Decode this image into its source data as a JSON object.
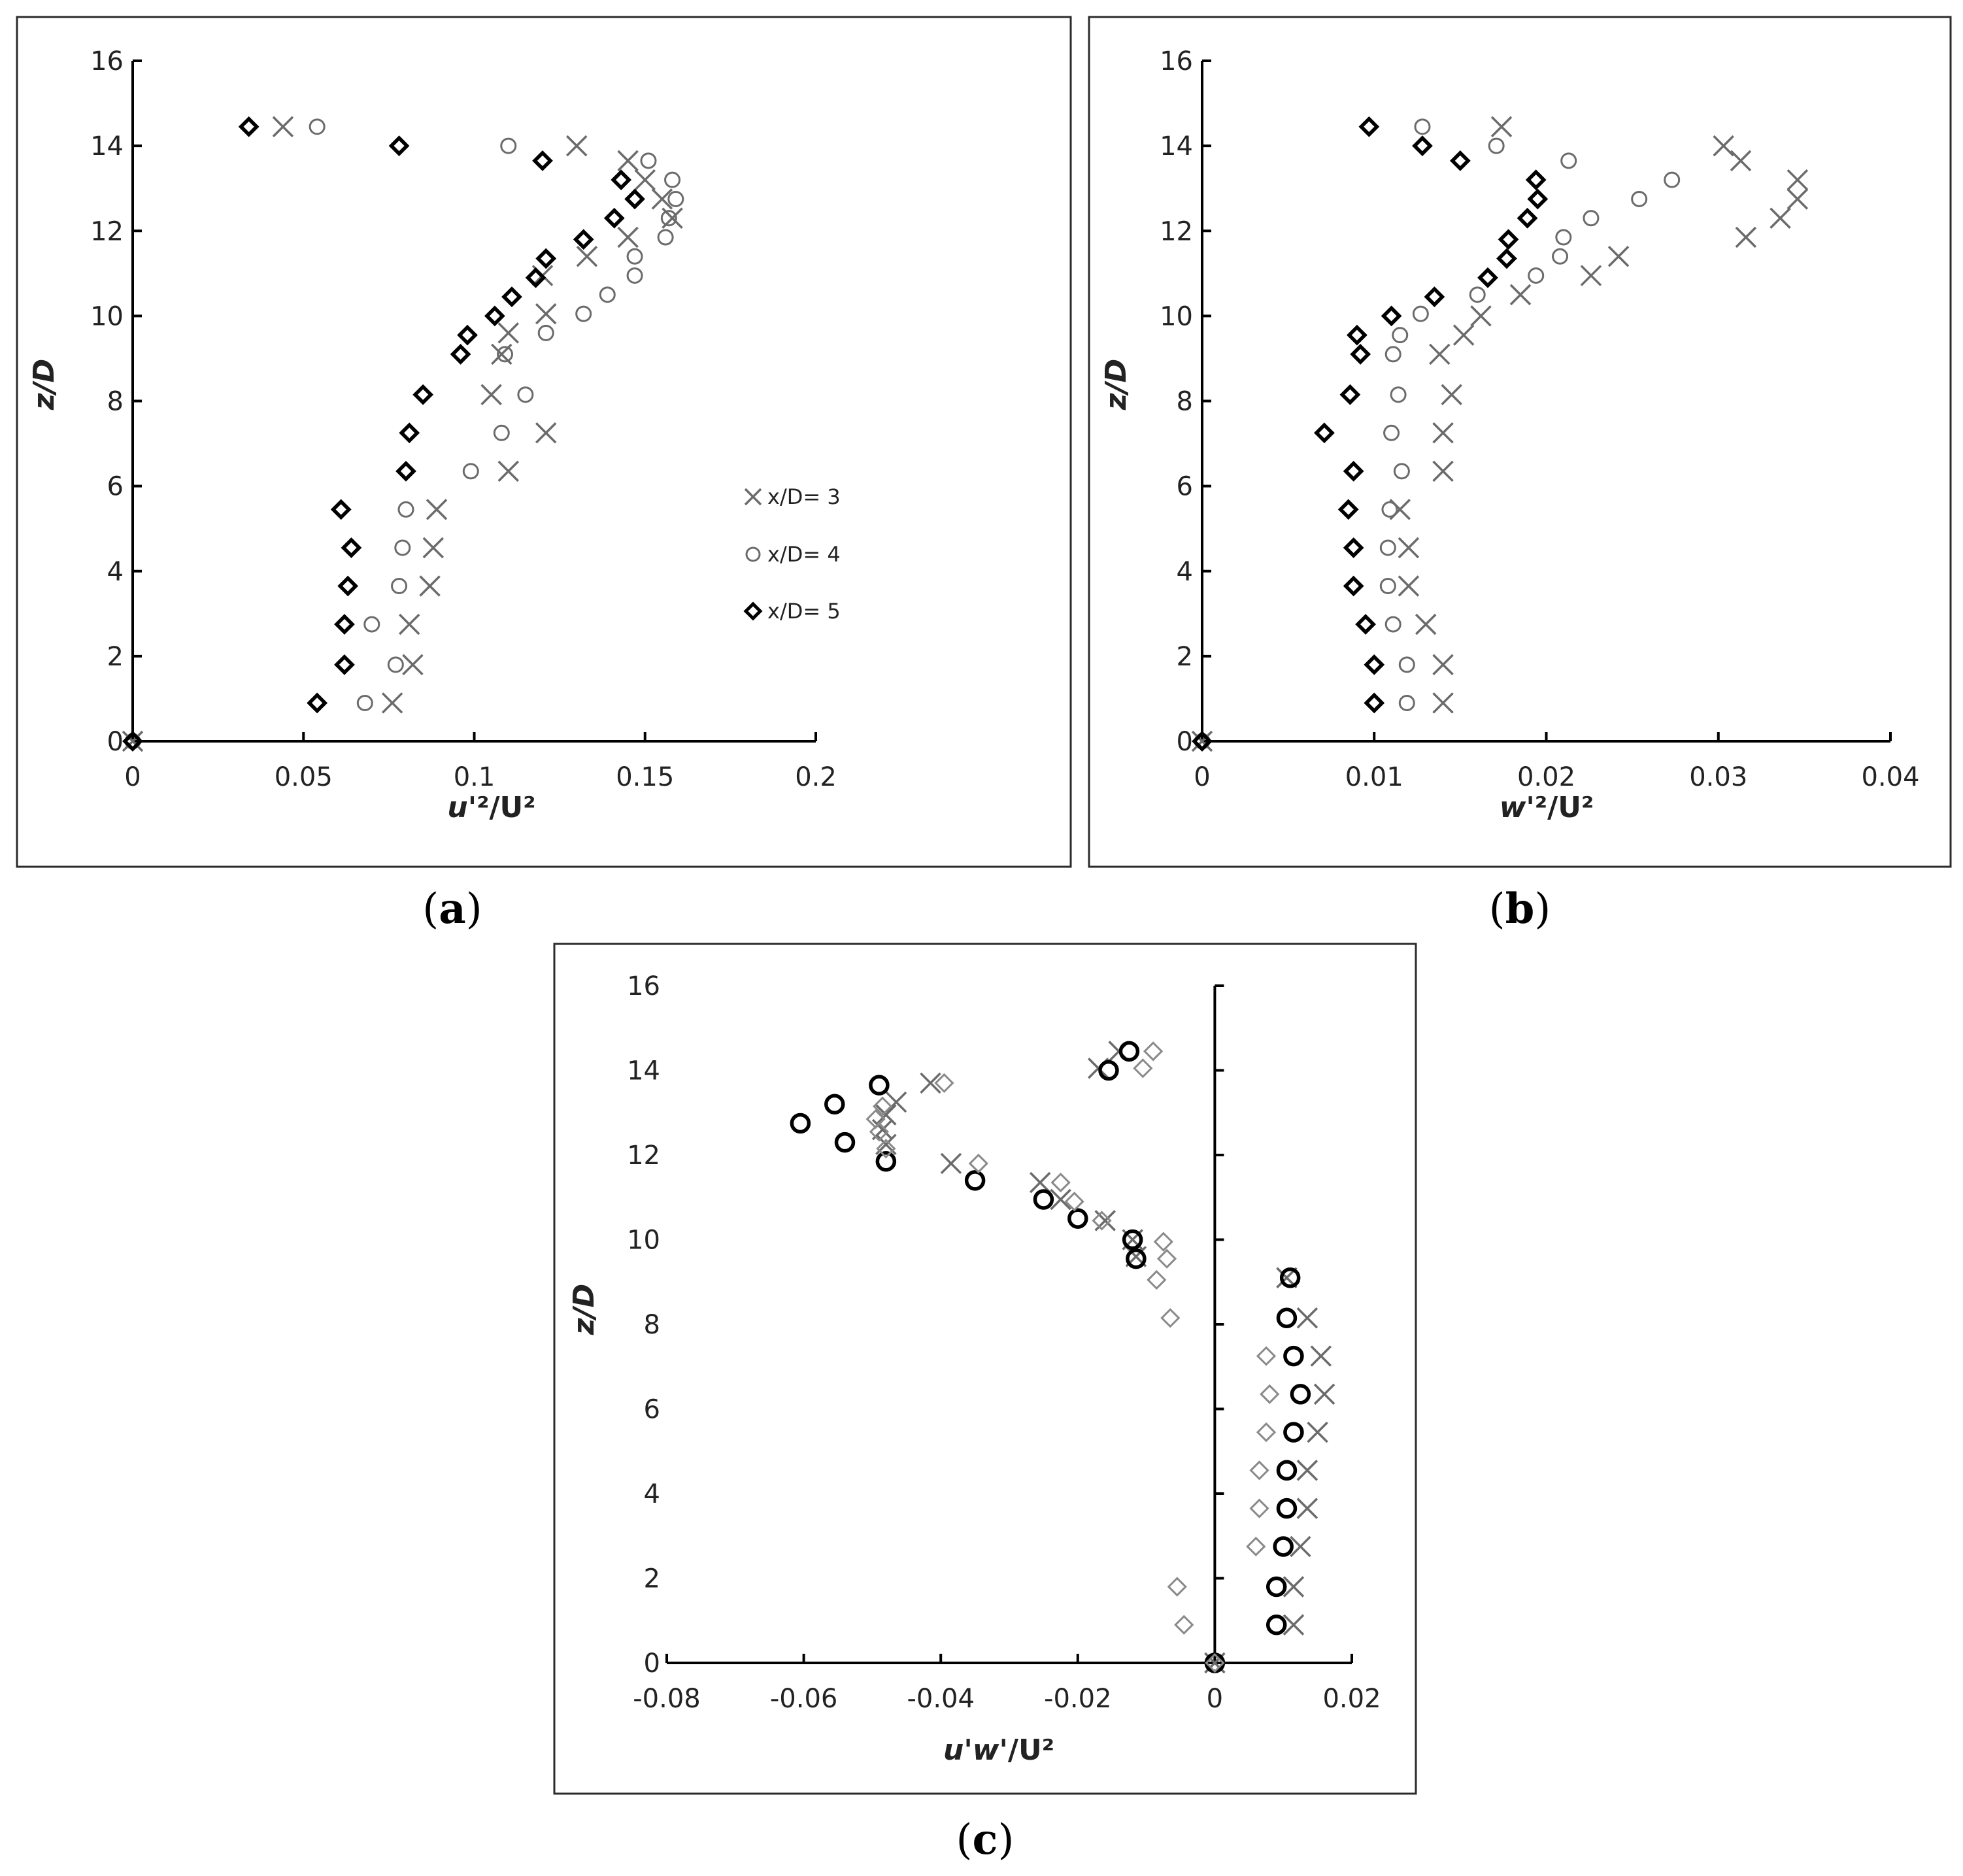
{
  "colors": {
    "dark": "#000000",
    "gray": "#6b6b6b",
    "light_gray": "#8a8a8a"
  },
  "panel_labels": [
    {
      "open": "(",
      "letter": "a",
      "close": ")"
    },
    {
      "open": "(",
      "letter": "b",
      "close": ")"
    },
    {
      "open": "(",
      "letter": "c",
      "close": ")"
    }
  ],
  "chart_data": [
    {
      "id": "a",
      "type": "scatter",
      "xlabel_main": "u'",
      "xlabel_rest": "²/U²",
      "ylabel": "z/D",
      "xlim": [
        0,
        0.2
      ],
      "ylim": [
        0,
        16
      ],
      "xticks": [
        0,
        0.05,
        0.1,
        0.15,
        0.2
      ],
      "xtick_labels": [
        "0",
        "0.05",
        "0.1",
        "0.15",
        "0.2"
      ],
      "yticks": [
        0,
        2,
        4,
        6,
        8,
        10,
        12,
        14,
        16
      ],
      "ytick_labels": [
        "0",
        "2",
        "4",
        "6",
        "8",
        "10",
        "12",
        "14",
        "16"
      ],
      "legend": [
        "x/D= 3",
        "x/D= 4",
        "x/D= 5"
      ],
      "series": [
        {
          "name": "x/D= 3",
          "marker": "cross",
          "color": "#6b6b6b",
          "points": [
            [
              0,
              0
            ],
            [
              0.076,
              0.9
            ],
            [
              0.082,
              1.8
            ],
            [
              0.081,
              2.75
            ],
            [
              0.087,
              3.65
            ],
            [
              0.088,
              4.55
            ],
            [
              0.089,
              5.45
            ],
            [
              0.11,
              6.35
            ],
            [
              0.121,
              7.25
            ],
            [
              0.105,
              8.15
            ],
            [
              0.108,
              9.1
            ],
            [
              0.11,
              9.6
            ],
            [
              0.121,
              10.05
            ],
            [
              0.12,
              10.95
            ],
            [
              0.133,
              11.4
            ],
            [
              0.145,
              11.85
            ],
            [
              0.158,
              12.3
            ],
            [
              0.155,
              12.75
            ],
            [
              0.15,
              13.2
            ],
            [
              0.145,
              13.65
            ],
            [
              0.13,
              14
            ],
            [
              0.044,
              14.45
            ]
          ]
        },
        {
          "name": "x/D= 4",
          "marker": "circle",
          "color": "#6b6b6b",
          "points": [
            [
              0,
              0
            ],
            [
              0.068,
              0.9
            ],
            [
              0.077,
              1.8
            ],
            [
              0.07,
              2.75
            ],
            [
              0.078,
              3.65
            ],
            [
              0.079,
              4.55
            ],
            [
              0.08,
              5.45
            ],
            [
              0.099,
              6.35
            ],
            [
              0.108,
              7.25
            ],
            [
              0.115,
              8.15
            ],
            [
              0.109,
              9.1
            ],
            [
              0.121,
              9.6
            ],
            [
              0.132,
              10.05
            ],
            [
              0.139,
              10.5
            ],
            [
              0.147,
              10.95
            ],
            [
              0.147,
              11.4
            ],
            [
              0.156,
              11.85
            ],
            [
              0.157,
              12.3
            ],
            [
              0.159,
              12.75
            ],
            [
              0.158,
              13.2
            ],
            [
              0.151,
              13.65
            ],
            [
              0.11,
              14
            ],
            [
              0.054,
              14.45
            ]
          ]
        },
        {
          "name": "x/D= 5",
          "marker": "diamond",
          "color": "#000000",
          "points": [
            [
              0,
              0
            ],
            [
              0.054,
              0.9
            ],
            [
              0.062,
              1.8
            ],
            [
              0.062,
              2.75
            ],
            [
              0.063,
              3.65
            ],
            [
              0.064,
              4.55
            ],
            [
              0.061,
              5.45
            ],
            [
              0.08,
              6.35
            ],
            [
              0.081,
              7.25
            ],
            [
              0.085,
              8.15
            ],
            [
              0.096,
              9.1
            ],
            [
              0.098,
              9.55
            ],
            [
              0.106,
              10
            ],
            [
              0.111,
              10.45
            ],
            [
              0.118,
              10.9
            ],
            [
              0.121,
              11.35
            ],
            [
              0.132,
              11.8
            ],
            [
              0.141,
              12.3
            ],
            [
              0.147,
              12.75
            ],
            [
              0.143,
              13.2
            ],
            [
              0.12,
              13.65
            ],
            [
              0.078,
              14
            ],
            [
              0.034,
              14.45
            ]
          ]
        }
      ]
    },
    {
      "id": "b",
      "type": "scatter",
      "xlabel_main": "w'",
      "xlabel_rest": "²/U²",
      "ylabel": "z/D",
      "xlim": [
        0,
        0.04
      ],
      "ylim": [
        0,
        16
      ],
      "xticks": [
        0,
        0.01,
        0.02,
        0.03,
        0.04
      ],
      "xtick_labels": [
        "0",
        "0.01",
        "0.02",
        "0.03",
        "0.04"
      ],
      "yticks": [
        0,
        2,
        4,
        6,
        8,
        10,
        12,
        14,
        16
      ],
      "ytick_labels": [
        "0",
        "2",
        "4",
        "6",
        "8",
        "10",
        "12",
        "14",
        "16"
      ],
      "series": [
        {
          "name": "x/D= 3",
          "marker": "cross",
          "color": "#6b6b6b",
          "points": [
            [
              0,
              0
            ],
            [
              0.014,
              0.9
            ],
            [
              0.014,
              1.8
            ],
            [
              0.013,
              2.75
            ],
            [
              0.012,
              3.65
            ],
            [
              0.012,
              4.55
            ],
            [
              0.0115,
              5.45
            ],
            [
              0.014,
              6.35
            ],
            [
              0.014,
              7.25
            ],
            [
              0.0145,
              8.15
            ],
            [
              0.0138,
              9.1
            ],
            [
              0.0152,
              9.55
            ],
            [
              0.0162,
              10
            ],
            [
              0.0185,
              10.5
            ],
            [
              0.0226,
              10.95
            ],
            [
              0.0242,
              11.4
            ],
            [
              0.0316,
              11.85
            ],
            [
              0.0336,
              12.3
            ],
            [
              0.0346,
              12.75
            ],
            [
              0.0346,
              13.2
            ],
            [
              0.0313,
              13.65
            ],
            [
              0.0303,
              14
            ],
            [
              0.0174,
              14.45
            ]
          ]
        },
        {
          "name": "x/D= 4",
          "marker": "circle",
          "color": "#6b6b6b",
          "points": [
            [
              0,
              0
            ],
            [
              0.0119,
              0.9
            ],
            [
              0.0119,
              1.8
            ],
            [
              0.0111,
              2.75
            ],
            [
              0.0108,
              3.65
            ],
            [
              0.0108,
              4.55
            ],
            [
              0.0109,
              5.45
            ],
            [
              0.0116,
              6.35
            ],
            [
              0.011,
              7.25
            ],
            [
              0.0114,
              8.15
            ],
            [
              0.0111,
              9.1
            ],
            [
              0.0115,
              9.55
            ],
            [
              0.0127,
              10.05
            ],
            [
              0.016,
              10.5
            ],
            [
              0.0194,
              10.95
            ],
            [
              0.0208,
              11.4
            ],
            [
              0.021,
              11.85
            ],
            [
              0.0226,
              12.3
            ],
            [
              0.0254,
              12.75
            ],
            [
              0.0273,
              13.2
            ],
            [
              0.0213,
              13.65
            ],
            [
              0.0171,
              14
            ],
            [
              0.0128,
              14.45
            ]
          ]
        },
        {
          "name": "x/D= 5",
          "marker": "diamond",
          "color": "#000000",
          "points": [
            [
              0,
              0
            ],
            [
              0.01,
              0.9
            ],
            [
              0.01,
              1.8
            ],
            [
              0.0095,
              2.75
            ],
            [
              0.0088,
              3.65
            ],
            [
              0.0088,
              4.55
            ],
            [
              0.0085,
              5.45
            ],
            [
              0.0088,
              6.35
            ],
            [
              0.0071,
              7.25
            ],
            [
              0.0086,
              8.15
            ],
            [
              0.0092,
              9.1
            ],
            [
              0.009,
              9.55
            ],
            [
              0.011,
              10
            ],
            [
              0.0135,
              10.45
            ],
            [
              0.0166,
              10.9
            ],
            [
              0.0177,
              11.35
            ],
            [
              0.0178,
              11.8
            ],
            [
              0.0189,
              12.3
            ],
            [
              0.0195,
              12.75
            ],
            [
              0.0194,
              13.2
            ],
            [
              0.015,
              13.65
            ],
            [
              0.0128,
              14
            ],
            [
              0.0097,
              14.45
            ]
          ]
        }
      ]
    },
    {
      "id": "c",
      "type": "scatter",
      "xlabel_main": "u'w'",
      "xlabel_rest": "/U²",
      "ylabel": "z/D",
      "xlim": [
        -0.08,
        0.02
      ],
      "ylim": [
        0,
        16
      ],
      "xticks": [
        -0.08,
        -0.06,
        -0.04,
        -0.02,
        0,
        0.02
      ],
      "xtick_labels": [
        "-0.08",
        "-0.06",
        "-0.04",
        "-0.02",
        "0",
        "0.02"
      ],
      "yticks": [
        0,
        2,
        4,
        6,
        8,
        10,
        12,
        14,
        16
      ],
      "ytick_labels": [
        "0",
        "2",
        "4",
        "6",
        "8",
        "10",
        "12",
        "14",
        "16"
      ],
      "series": [
        {
          "name": "x/D= 3",
          "marker": "cross",
          "color": "#6b6b6b",
          "points": [
            [
              0,
              0
            ],
            [
              0.0115,
              0.9
            ],
            [
              0.0115,
              1.8
            ],
            [
              0.0125,
              2.75
            ],
            [
              0.0135,
              3.65
            ],
            [
              0.0135,
              4.55
            ],
            [
              0.015,
              5.45
            ],
            [
              0.016,
              6.35
            ],
            [
              0.0155,
              7.25
            ],
            [
              0.0135,
              8.15
            ],
            [
              0.0105,
              9.1
            ],
            [
              -0.0115,
              9.6
            ],
            [
              -0.012,
              10
            ],
            [
              -0.016,
              10.45
            ],
            [
              -0.0225,
              10.95
            ],
            [
              -0.0255,
              11.35
            ],
            [
              -0.0385,
              11.8
            ],
            [
              -0.048,
              12.25
            ],
            [
              -0.0485,
              12.6
            ],
            [
              -0.048,
              12.95
            ],
            [
              -0.0465,
              13.25
            ],
            [
              -0.0415,
              13.7
            ],
            [
              -0.017,
              14.05
            ],
            [
              -0.014,
              14.45
            ]
          ]
        },
        {
          "name": "x/D= 4",
          "marker": "circle",
          "color": "#000000",
          "points": [
            [
              0,
              0
            ],
            [
              0.009,
              0.9
            ],
            [
              0.009,
              1.8
            ],
            [
              0.01,
              2.75
            ],
            [
              0.0105,
              3.65
            ],
            [
              0.0105,
              4.55
            ],
            [
              0.0115,
              5.45
            ],
            [
              0.0125,
              6.35
            ],
            [
              0.0115,
              7.25
            ],
            [
              0.0105,
              8.15
            ],
            [
              0.011,
              9.1
            ],
            [
              -0.0115,
              9.55
            ],
            [
              -0.012,
              10
            ],
            [
              -0.02,
              10.5
            ],
            [
              -0.025,
              10.95
            ],
            [
              -0.035,
              11.4
            ],
            [
              -0.048,
              11.85
            ],
            [
              -0.054,
              12.3
            ],
            [
              -0.0605,
              12.75
            ],
            [
              -0.0555,
              13.2
            ],
            [
              -0.049,
              13.65
            ],
            [
              -0.0155,
              14
            ],
            [
              -0.0125,
              14.45
            ]
          ]
        },
        {
          "name": "x/D= 5",
          "marker": "diamond",
          "color": "#8a8a8a",
          "points": [
            [
              0,
              0
            ],
            [
              -0.0045,
              0.9
            ],
            [
              -0.0055,
              1.8
            ],
            [
              0.006,
              2.75
            ],
            [
              0.0065,
              3.65
            ],
            [
              0.0065,
              4.55
            ],
            [
              0.0075,
              5.45
            ],
            [
              0.008,
              6.35
            ],
            [
              0.0075,
              7.25
            ],
            [
              -0.0065,
              8.15
            ],
            [
              -0.0085,
              9.05
            ],
            [
              -0.007,
              9.55
            ],
            [
              -0.0075,
              9.95
            ],
            [
              -0.0165,
              10.45
            ],
            [
              -0.0205,
              10.9
            ],
            [
              -0.0225,
              11.35
            ],
            [
              -0.0345,
              11.8
            ],
            [
              -0.048,
              12.15
            ],
            [
              -0.049,
              12.55
            ],
            [
              -0.0495,
              12.85
            ],
            [
              -0.0485,
              13.15
            ],
            [
              -0.0395,
              13.7
            ],
            [
              -0.0105,
              14.05
            ],
            [
              -0.009,
              14.45
            ]
          ]
        }
      ]
    }
  ]
}
